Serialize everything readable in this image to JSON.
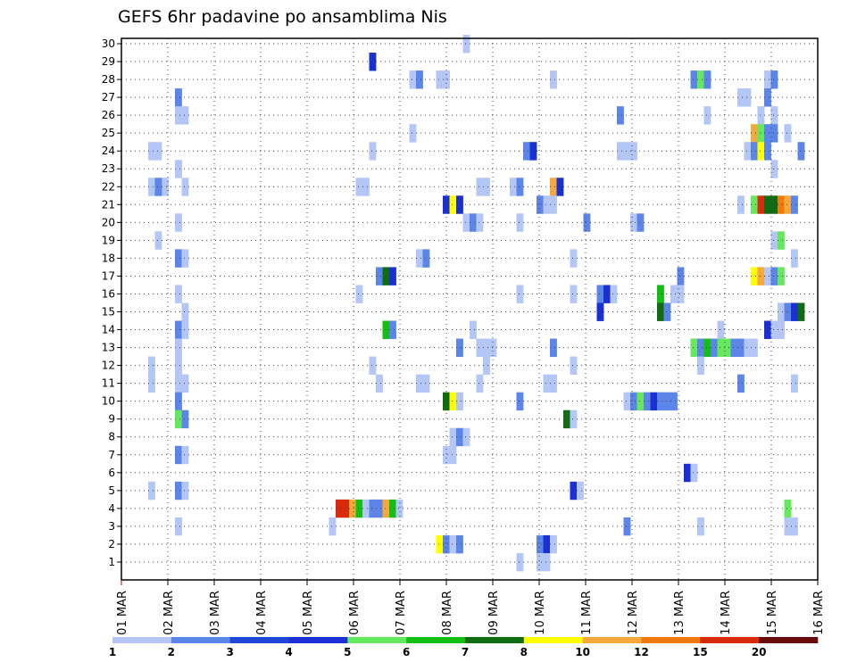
{
  "chart_data": {
    "type": "heatmap",
    "title": "GEFS 6hr padavine po ansamblima Nis",
    "xlabel": "",
    "ylabel": "",
    "x_ticks": [
      "01 MAR",
      "02 MAR",
      "03 MAR",
      "04 MAR",
      "05 MAR",
      "06 MAR",
      "07 MAR",
      "08 MAR",
      "09 MAR",
      "10 MAR",
      "11 MAR",
      "12 MAR",
      "13 MAR",
      "14 MAR",
      "15 MAR",
      "16 MAR"
    ],
    "y_ticks": [
      1,
      2,
      3,
      4,
      5,
      6,
      7,
      8,
      9,
      10,
      11,
      12,
      13,
      14,
      15,
      16,
      17,
      18,
      19,
      20,
      21,
      22,
      23,
      24,
      25,
      26,
      27,
      28,
      29,
      30
    ],
    "x_range": [
      "01 MAR 00z",
      "16 MAR 00z"
    ],
    "y_range": [
      0,
      30
    ],
    "grid": true,
    "time_step_hours": 6,
    "levels": [
      1,
      2,
      3,
      4,
      5,
      6,
      7,
      8,
      10,
      12,
      15,
      20
    ],
    "colors": [
      "#b3c6f5",
      "#5c85ea",
      "#1e46d8",
      "#1a2fd4",
      "#66e85c",
      "#12bf12",
      "#106c10",
      "#ffff00",
      "#f7a83a",
      "#f27a0c",
      "#d82a0c",
      "#6b0a0a"
    ],
    "colorbar_labels": [
      "1",
      "2",
      "3",
      "4",
      "5",
      "6",
      "7",
      "8",
      "10",
      "12",
      "15",
      "20"
    ],
    "cells": [
      {
        "member": 30,
        "t": 51,
        "v": 1
      },
      {
        "member": 29,
        "t": 37,
        "v": 4
      },
      {
        "member": 28,
        "t": 43,
        "v": 1
      },
      {
        "member": 28,
        "t": 44,
        "v": 2
      },
      {
        "member": 28,
        "t": 47,
        "v": 1
      },
      {
        "member": 28,
        "t": 48,
        "v": 1
      },
      {
        "member": 28,
        "t": 64,
        "v": 1
      },
      {
        "member": 28,
        "t": 85,
        "v": 2
      },
      {
        "member": 28,
        "t": 86,
        "v": 5
      },
      {
        "member": 28,
        "t": 87,
        "v": 2
      },
      {
        "member": 28,
        "t": 96,
        "v": 1
      },
      {
        "member": 28,
        "t": 97,
        "v": 2
      },
      {
        "member": 27,
        "t": 8,
        "v": 2
      },
      {
        "member": 27,
        "t": 92,
        "v": 1
      },
      {
        "member": 27,
        "t": 93,
        "v": 1
      },
      {
        "member": 27,
        "t": 96,
        "v": 2
      },
      {
        "member": 26,
        "t": 8,
        "v": 1
      },
      {
        "member": 26,
        "t": 9,
        "v": 1
      },
      {
        "member": 26,
        "t": 74,
        "v": 2
      },
      {
        "member": 26,
        "t": 87,
        "v": 1
      },
      {
        "member": 26,
        "t": 95,
        "v": 1
      },
      {
        "member": 26,
        "t": 97,
        "v": 1
      },
      {
        "member": 25,
        "t": 43,
        "v": 1
      },
      {
        "member": 25,
        "t": 94,
        "v": 11
      },
      {
        "member": 25,
        "t": 95,
        "v": 5
      },
      {
        "member": 25,
        "t": 96,
        "v": 2
      },
      {
        "member": 25,
        "t": 97,
        "v": 2
      },
      {
        "member": 25,
        "t": 99,
        "v": 1
      },
      {
        "member": 24,
        "t": 4,
        "v": 1
      },
      {
        "member": 24,
        "t": 5,
        "v": 1
      },
      {
        "member": 24,
        "t": 37,
        "v": 1
      },
      {
        "member": 24,
        "t": 60,
        "v": 2
      },
      {
        "member": 24,
        "t": 61,
        "v": 4
      },
      {
        "member": 24,
        "t": 74,
        "v": 1
      },
      {
        "member": 24,
        "t": 75,
        "v": 1
      },
      {
        "member": 24,
        "t": 76,
        "v": 1
      },
      {
        "member": 24,
        "t": 93,
        "v": 1
      },
      {
        "member": 24,
        "t": 94,
        "v": 2
      },
      {
        "member": 24,
        "t": 95,
        "v": 8
      },
      {
        "member": 24,
        "t": 96,
        "v": 2
      },
      {
        "member": 24,
        "t": 101,
        "v": 2
      },
      {
        "member": 23,
        "t": 8,
        "v": 1
      },
      {
        "member": 23,
        "t": 97,
        "v": 1
      },
      {
        "member": 22,
        "t": 4,
        "v": 1
      },
      {
        "member": 22,
        "t": 6,
        "v": 1
      },
      {
        "member": 22,
        "t": 5,
        "v": 2
      },
      {
        "member": 22,
        "t": 9,
        "v": 1
      },
      {
        "member": 22,
        "t": 35,
        "v": 1
      },
      {
        "member": 22,
        "t": 36,
        "v": 1
      },
      {
        "member": 22,
        "t": 53,
        "v": 1
      },
      {
        "member": 22,
        "t": 54,
        "v": 1
      },
      {
        "member": 22,
        "t": 58,
        "v": 1
      },
      {
        "member": 22,
        "t": 59,
        "v": 2
      },
      {
        "member": 22,
        "t": 64,
        "v": 10
      },
      {
        "member": 22,
        "t": 65,
        "v": 4
      },
      {
        "member": 21,
        "t": 48,
        "v": 4
      },
      {
        "member": 21,
        "t": 49,
        "v": 8
      },
      {
        "member": 21,
        "t": 50,
        "v": 4
      },
      {
        "member": 21,
        "t": 62,
        "v": 2
      },
      {
        "member": 21,
        "t": 63,
        "v": 1
      },
      {
        "member": 21,
        "t": 64,
        "v": 1
      },
      {
        "member": 21,
        "t": 92,
        "v": 1
      },
      {
        "member": 21,
        "t": 94,
        "v": 5
      },
      {
        "member": 21,
        "t": 95,
        "v": 15
      },
      {
        "member": 21,
        "t": 96,
        "v": 7
      },
      {
        "member": 21,
        "t": 97,
        "v": 7
      },
      {
        "member": 21,
        "t": 98,
        "v": 12
      },
      {
        "member": 21,
        "t": 99,
        "v": 10
      },
      {
        "member": 21,
        "t": 100,
        "v": 2
      },
      {
        "member": 20,
        "t": 8,
        "v": 1
      },
      {
        "member": 20,
        "t": 51,
        "v": 1
      },
      {
        "member": 20,
        "t": 52,
        "v": 2
      },
      {
        "member": 20,
        "t": 53,
        "v": 1
      },
      {
        "member": 20,
        "t": 59,
        "v": 1
      },
      {
        "member": 20,
        "t": 69,
        "v": 2
      },
      {
        "member": 20,
        "t": 76,
        "v": 1
      },
      {
        "member": 20,
        "t": 77,
        "v": 2
      },
      {
        "member": 19,
        "t": 5,
        "v": 1
      },
      {
        "member": 19,
        "t": 97,
        "v": 1
      },
      {
        "member": 19,
        "t": 98,
        "v": 5
      },
      {
        "member": 18,
        "t": 8,
        "v": 2
      },
      {
        "member": 18,
        "t": 9,
        "v": 1
      },
      {
        "member": 18,
        "t": 44,
        "v": 1
      },
      {
        "member": 18,
        "t": 45,
        "v": 2
      },
      {
        "member": 18,
        "t": 67,
        "v": 1
      },
      {
        "member": 18,
        "t": 100,
        "v": 1
      },
      {
        "member": 17,
        "t": 38,
        "v": 2
      },
      {
        "member": 17,
        "t": 39,
        "v": 7
      },
      {
        "member": 17,
        "t": 40,
        "v": 4
      },
      {
        "member": 17,
        "t": 83,
        "v": 2
      },
      {
        "member": 17,
        "t": 94,
        "v": 8
      },
      {
        "member": 17,
        "t": 95,
        "v": 11
      },
      {
        "member": 17,
        "t": 96,
        "v": 1
      },
      {
        "member": 17,
        "t": 97,
        "v": 2
      },
      {
        "member": 17,
        "t": 98,
        "v": 5
      },
      {
        "member": 16,
        "t": 8,
        "v": 1
      },
      {
        "member": 16,
        "t": 35,
        "v": 1
      },
      {
        "member": 16,
        "t": 59,
        "v": 1
      },
      {
        "member": 16,
        "t": 67,
        "v": 1
      },
      {
        "member": 16,
        "t": 71,
        "v": 2
      },
      {
        "member": 16,
        "t": 72,
        "v": 4
      },
      {
        "member": 16,
        "t": 73,
        "v": 1
      },
      {
        "member": 16,
        "t": 80,
        "v": 6
      },
      {
        "member": 16,
        "t": 82,
        "v": 1
      },
      {
        "member": 16,
        "t": 83,
        "v": 1
      },
      {
        "member": 15,
        "t": 9,
        "v": 1
      },
      {
        "member": 15,
        "t": 71,
        "v": 4
      },
      {
        "member": 15,
        "t": 80,
        "v": 7
      },
      {
        "member": 15,
        "t": 81,
        "v": 2
      },
      {
        "member": 15,
        "t": 98,
        "v": 1
      },
      {
        "member": 15,
        "t": 99,
        "v": 2
      },
      {
        "member": 15,
        "t": 100,
        "v": 4
      },
      {
        "member": 15,
        "t": 101,
        "v": 7
      },
      {
        "member": 14,
        "t": 8,
        "v": 2
      },
      {
        "member": 14,
        "t": 9,
        "v": 1
      },
      {
        "member": 14,
        "t": 39,
        "v": 6
      },
      {
        "member": 14,
        "t": 40,
        "v": 2
      },
      {
        "member": 14,
        "t": 52,
        "v": 1
      },
      {
        "member": 14,
        "t": 89,
        "v": 1
      },
      {
        "member": 14,
        "t": 96,
        "v": 4
      },
      {
        "member": 14,
        "t": 97,
        "v": 1
      },
      {
        "member": 14,
        "t": 98,
        "v": 1
      },
      {
        "member": 13,
        "t": 8,
        "v": 1
      },
      {
        "member": 13,
        "t": 50,
        "v": 2
      },
      {
        "member": 13,
        "t": 53,
        "v": 1
      },
      {
        "member": 13,
        "t": 54,
        "v": 1
      },
      {
        "member": 13,
        "t": 55,
        "v": 1
      },
      {
        "member": 13,
        "t": 64,
        "v": 2
      },
      {
        "member": 13,
        "t": 85,
        "v": 5
      },
      {
        "member": 13,
        "t": 86,
        "v": 2
      },
      {
        "member": 13,
        "t": 87,
        "v": 6
      },
      {
        "member": 13,
        "t": 88,
        "v": 2
      },
      {
        "member": 13,
        "t": 89,
        "v": 5
      },
      {
        "member": 13,
        "t": 90,
        "v": 5
      },
      {
        "member": 13,
        "t": 91,
        "v": 2
      },
      {
        "member": 13,
        "t": 92,
        "v": 2
      },
      {
        "member": 13,
        "t": 93,
        "v": 1
      },
      {
        "member": 13,
        "t": 94,
        "v": 1
      },
      {
        "member": 12,
        "t": 4,
        "v": 1
      },
      {
        "member": 12,
        "t": 8,
        "v": 1
      },
      {
        "member": 12,
        "t": 37,
        "v": 1
      },
      {
        "member": 12,
        "t": 54,
        "v": 1
      },
      {
        "member": 12,
        "t": 67,
        "v": 1
      },
      {
        "member": 12,
        "t": 86,
        "v": 1
      },
      {
        "member": 11,
        "t": 4,
        "v": 1
      },
      {
        "member": 11,
        "t": 8,
        "v": 1
      },
      {
        "member": 11,
        "t": 9,
        "v": 1
      },
      {
        "member": 11,
        "t": 38,
        "v": 1
      },
      {
        "member": 11,
        "t": 44,
        "v": 1
      },
      {
        "member": 11,
        "t": 45,
        "v": 1
      },
      {
        "member": 11,
        "t": 53,
        "v": 1
      },
      {
        "member": 11,
        "t": 63,
        "v": 1
      },
      {
        "member": 11,
        "t": 64,
        "v": 1
      },
      {
        "member": 11,
        "t": 92,
        "v": 2
      },
      {
        "member": 11,
        "t": 100,
        "v": 1
      },
      {
        "member": 10,
        "t": 8,
        "v": 2
      },
      {
        "member": 10,
        "t": 48,
        "v": 7
      },
      {
        "member": 10,
        "t": 49,
        "v": 8
      },
      {
        "member": 10,
        "t": 50,
        "v": 1
      },
      {
        "member": 10,
        "t": 59,
        "v": 2
      },
      {
        "member": 10,
        "t": 75,
        "v": 1
      },
      {
        "member": 10,
        "t": 76,
        "v": 2
      },
      {
        "member": 10,
        "t": 77,
        "v": 5
      },
      {
        "member": 10,
        "t": 78,
        "v": 2
      },
      {
        "member": 10,
        "t": 79,
        "v": 4
      },
      {
        "member": 10,
        "t": 80,
        "v": 2
      },
      {
        "member": 10,
        "t": 81,
        "v": 2
      },
      {
        "member": 10,
        "t": 82,
        "v": 2
      },
      {
        "member": 9,
        "t": 8,
        "v": 5
      },
      {
        "member": 9,
        "t": 9,
        "v": 2
      },
      {
        "member": 9,
        "t": 66,
        "v": 7
      },
      {
        "member": 9,
        "t": 67,
        "v": 1
      },
      {
        "member": 8,
        "t": 49,
        "v": 1
      },
      {
        "member": 8,
        "t": 50,
        "v": 2
      },
      {
        "member": 8,
        "t": 51,
        "v": 1
      },
      {
        "member": 7,
        "t": 8,
        "v": 2
      },
      {
        "member": 7,
        "t": 9,
        "v": 1
      },
      {
        "member": 7,
        "t": 48,
        "v": 1
      },
      {
        "member": 7,
        "t": 49,
        "v": 1
      },
      {
        "member": 6,
        "t": 84,
        "v": 4
      },
      {
        "member": 6,
        "t": 85,
        "v": 1
      },
      {
        "member": 5,
        "t": 4,
        "v": 1
      },
      {
        "member": 5,
        "t": 8,
        "v": 2
      },
      {
        "member": 5,
        "t": 9,
        "v": 1
      },
      {
        "member": 5,
        "t": 67,
        "v": 4
      },
      {
        "member": 5,
        "t": 68,
        "v": 1
      },
      {
        "member": 4,
        "t": 32,
        "v": 15
      },
      {
        "member": 4,
        "t": 33,
        "v": 15
      },
      {
        "member": 4,
        "t": 34,
        "v": 10
      },
      {
        "member": 4,
        "t": 35,
        "v": 6
      },
      {
        "member": 4,
        "t": 36,
        "v": 1
      },
      {
        "member": 4,
        "t": 37,
        "v": 2
      },
      {
        "member": 4,
        "t": 38,
        "v": 2
      },
      {
        "member": 4,
        "t": 39,
        "v": 10
      },
      {
        "member": 4,
        "t": 40,
        "v": 6
      },
      {
        "member": 4,
        "t": 41,
        "v": 1
      },
      {
        "member": 4,
        "t": 99,
        "v": 5
      },
      {
        "member": 3,
        "t": 8,
        "v": 1
      },
      {
        "member": 3,
        "t": 31,
        "v": 1
      },
      {
        "member": 3,
        "t": 75,
        "v": 2
      },
      {
        "member": 3,
        "t": 86,
        "v": 1
      },
      {
        "member": 3,
        "t": 99,
        "v": 1
      },
      {
        "member": 3,
        "t": 100,
        "v": 1
      },
      {
        "member": 2,
        "t": 47,
        "v": 8
      },
      {
        "member": 2,
        "t": 48,
        "v": 2
      },
      {
        "member": 2,
        "t": 49,
        "v": 1
      },
      {
        "member": 2,
        "t": 50,
        "v": 2
      },
      {
        "member": 2,
        "t": 62,
        "v": 2
      },
      {
        "member": 2,
        "t": 63,
        "v": 4
      },
      {
        "member": 2,
        "t": 64,
        "v": 1
      },
      {
        "member": 1,
        "t": 59,
        "v": 1
      },
      {
        "member": 1,
        "t": 62,
        "v": 1
      },
      {
        "member": 1,
        "t": 63,
        "v": 1
      }
    ]
  }
}
